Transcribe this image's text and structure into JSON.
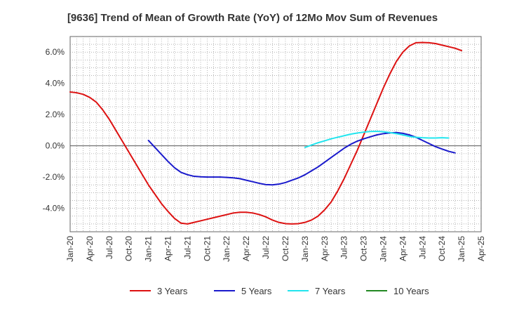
{
  "chart_data": {
    "type": "line",
    "title": "[9636]  Trend of Mean of Growth Rate (YoY) of 12Mo Mov Sum of Revenues",
    "xlabel": "",
    "ylabel": "",
    "ylim": [
      -5.5,
      7.0
    ],
    "y_ticks": [
      6.0,
      4.0,
      2.0,
      0.0,
      -2.0,
      -4.0
    ],
    "y_tick_labels": [
      "6.0%",
      "4.0%",
      "2.0%",
      "0.0%",
      "-2.0%",
      "-4.0%"
    ],
    "x_tick_labels": [
      "Jan-20",
      "Apr-20",
      "Jul-20",
      "Oct-20",
      "Jan-21",
      "Apr-21",
      "Jul-21",
      "Oct-21",
      "Jan-22",
      "Apr-22",
      "Jul-22",
      "Oct-22",
      "Jan-23",
      "Apr-23",
      "Jul-23",
      "Oct-23",
      "Jan-24",
      "Apr-24",
      "Jul-24",
      "Oct-24",
      "Jan-25",
      "Apr-25"
    ],
    "grid": true,
    "legend_position": "bottom",
    "series": [
      {
        "name": "3 Years",
        "color": "#dd1111",
        "start_month_index": 0,
        "values": [
          3.45,
          3.4,
          3.3,
          3.1,
          2.8,
          2.3,
          1.7,
          1.0,
          0.3,
          -0.4,
          -1.1,
          -1.8,
          -2.5,
          -3.1,
          -3.7,
          -4.2,
          -4.65,
          -4.95,
          -5.0,
          -4.9,
          -4.8,
          -4.7,
          -4.6,
          -4.5,
          -4.4,
          -4.3,
          -4.25,
          -4.25,
          -4.3,
          -4.4,
          -4.55,
          -4.75,
          -4.9,
          -4.98,
          -5.0,
          -4.98,
          -4.9,
          -4.75,
          -4.5,
          -4.1,
          -3.6,
          -2.9,
          -2.1,
          -1.2,
          -0.3,
          0.7,
          1.7,
          2.7,
          3.7,
          4.6,
          5.4,
          6.0,
          6.4,
          6.6,
          6.62,
          6.6,
          6.55,
          6.45,
          6.35,
          6.25,
          6.1
        ]
      },
      {
        "name": "5 Years",
        "color": "#1a1acc",
        "start_month_index": 12,
        "values": [
          0.35,
          -0.1,
          -0.55,
          -1.0,
          -1.4,
          -1.7,
          -1.85,
          -1.95,
          -1.98,
          -2.0,
          -2.0,
          -2.0,
          -2.02,
          -2.05,
          -2.1,
          -2.2,
          -2.3,
          -2.4,
          -2.48,
          -2.5,
          -2.45,
          -2.35,
          -2.2,
          -2.05,
          -1.85,
          -1.6,
          -1.35,
          -1.05,
          -0.75,
          -0.45,
          -0.15,
          0.1,
          0.3,
          0.45,
          0.58,
          0.7,
          0.78,
          0.83,
          0.85,
          0.8,
          0.7,
          0.55,
          0.35,
          0.15,
          -0.05,
          -0.2,
          -0.35,
          -0.45
        ]
      },
      {
        "name": "7 Years",
        "color": "#22e5ee",
        "start_month_index": 36,
        "values": [
          -0.1,
          0.05,
          0.2,
          0.32,
          0.45,
          0.55,
          0.65,
          0.75,
          0.82,
          0.88,
          0.92,
          0.93,
          0.9,
          0.85,
          0.78,
          0.7,
          0.6,
          0.55,
          0.52,
          0.5,
          0.5,
          0.52,
          0.5
        ]
      },
      {
        "name": "10 Years",
        "color": "#228822",
        "start_month_index": 0,
        "values": []
      }
    ]
  }
}
